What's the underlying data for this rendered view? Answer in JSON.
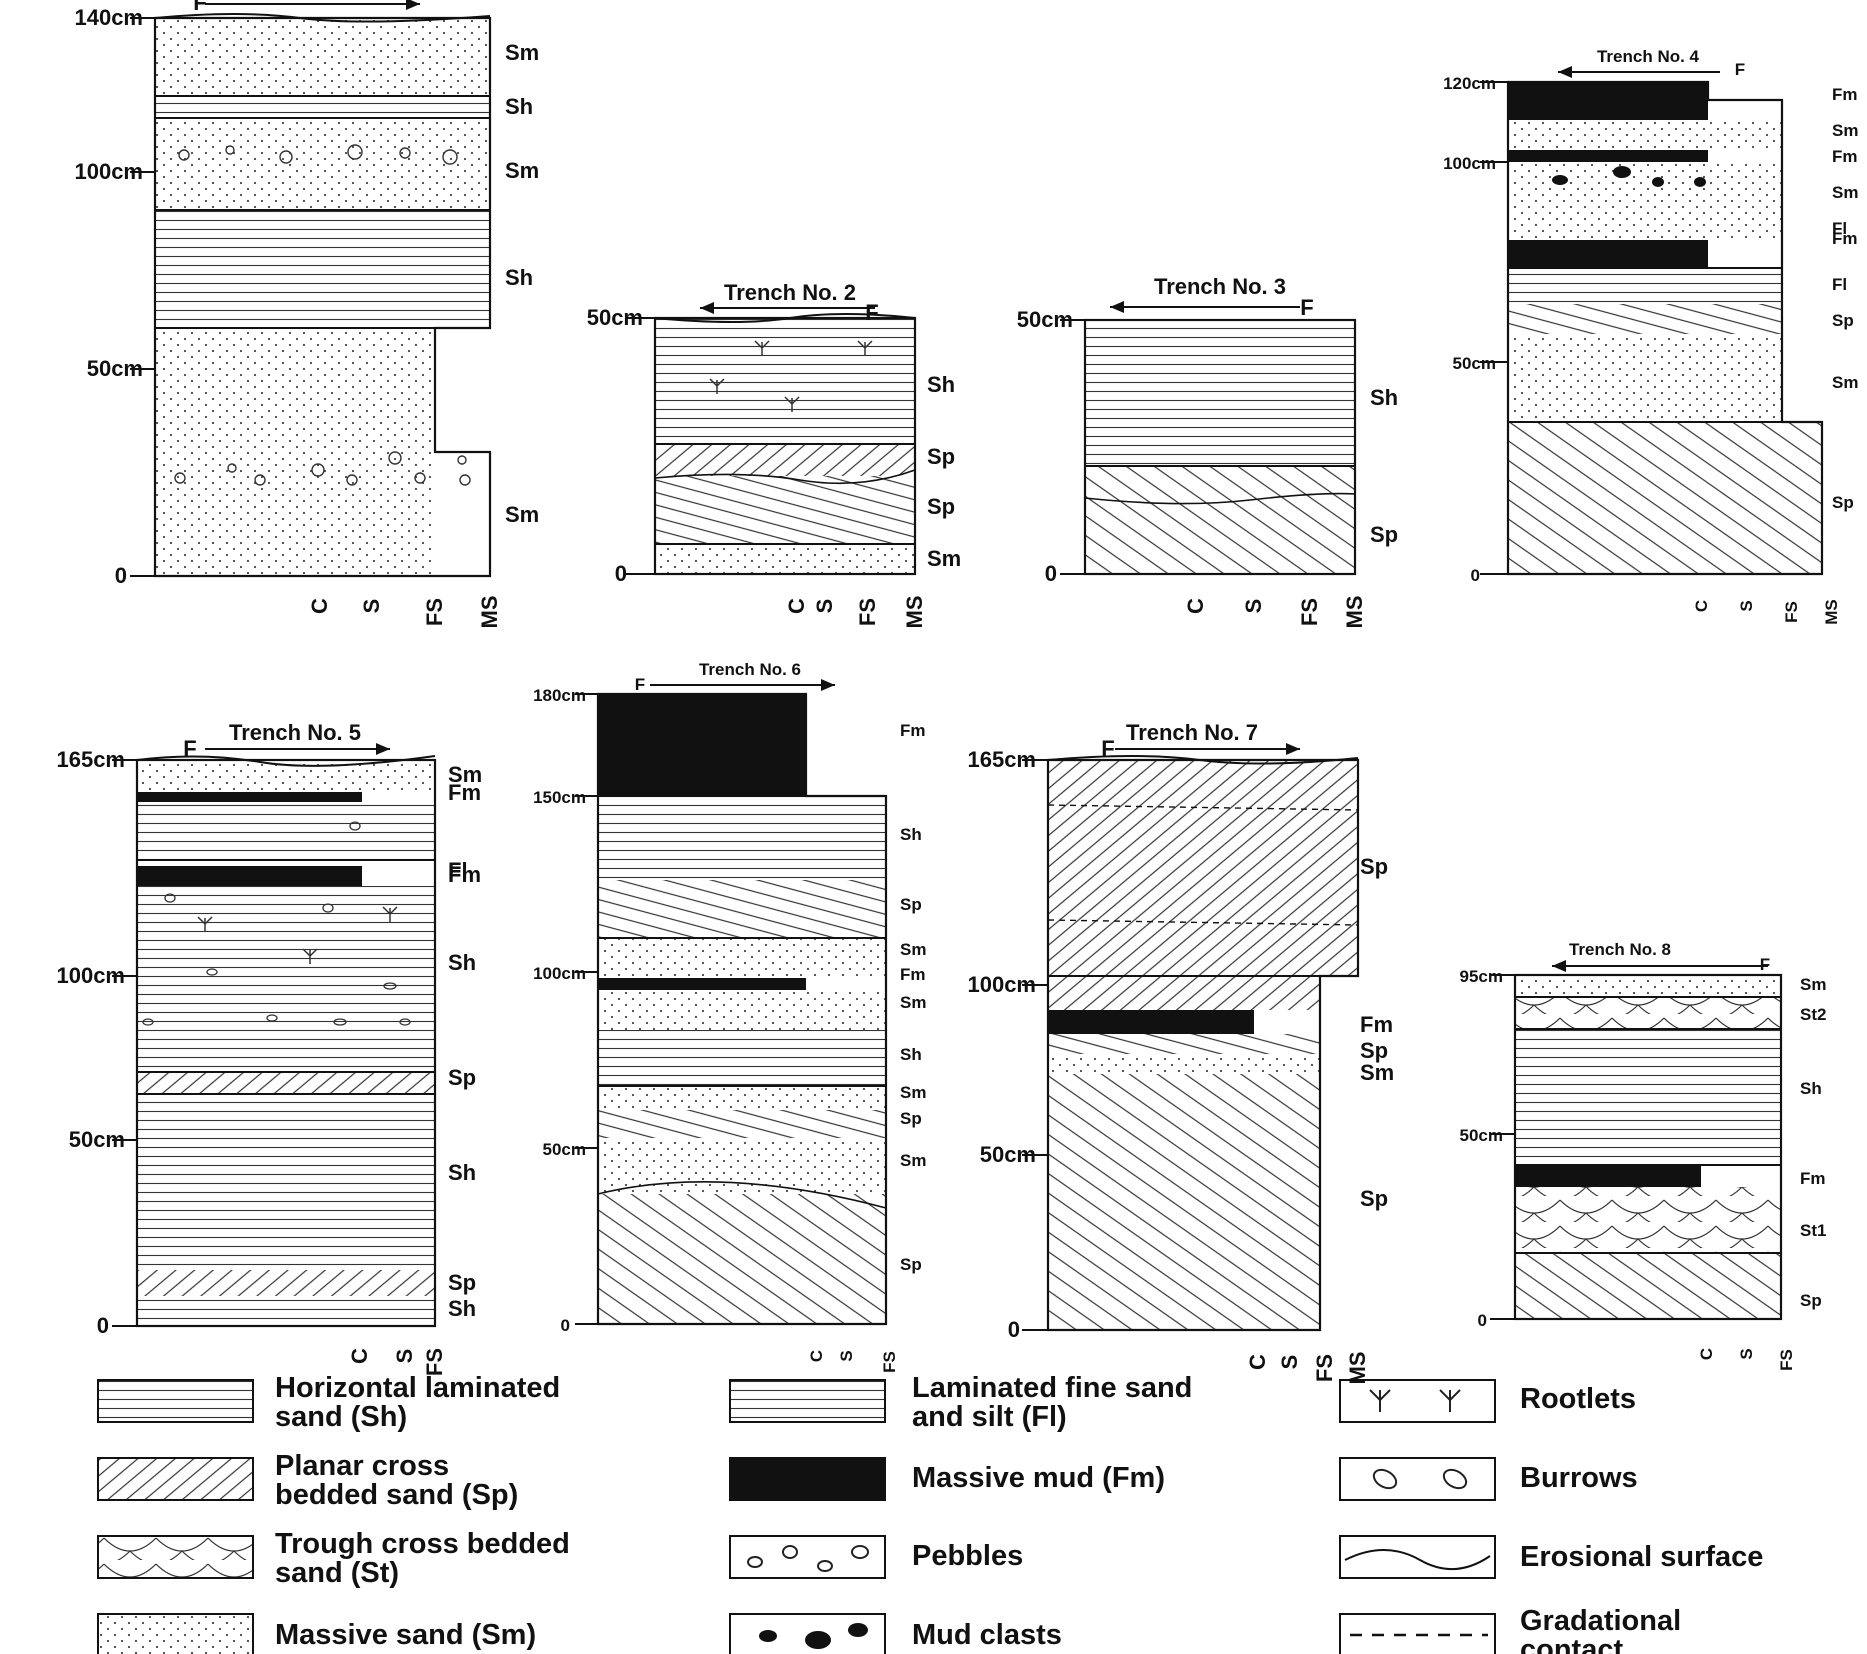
{
  "columns": [
    {
      "id": "c1",
      "title": "",
      "flow": "F",
      "flow_dir": "right",
      "top_label": "140cm",
      "mid_labels": [
        "100cm",
        "50cm"
      ],
      "zero": "0",
      "grain": [
        "C",
        "S",
        "FS",
        "MS"
      ],
      "units": [
        "Sm",
        "Sh",
        "Sm",
        "Sh",
        "Sm"
      ]
    },
    {
      "id": "c2",
      "title": "Trench No. 2",
      "flow": "F",
      "flow_dir": "left",
      "top_label": "50cm",
      "mid_labels": [],
      "zero": "0",
      "grain": [
        "C",
        "S",
        "FS",
        "MS"
      ],
      "units": [
        "Sh",
        "Sp",
        "Sp",
        "Sm"
      ]
    },
    {
      "id": "c3",
      "title": "Trench No. 3",
      "flow": "F",
      "flow_dir": "left",
      "top_label": "50cm",
      "mid_labels": [],
      "zero": "0",
      "grain": [
        "C",
        "S",
        "FS",
        "MS"
      ],
      "units": [
        "Sh",
        "Sp"
      ]
    },
    {
      "id": "c4",
      "title": "Trench No. 4",
      "flow": "F",
      "flow_dir": "left",
      "top_label": "120cm",
      "mid_labels": [
        "100cm",
        "50cm"
      ],
      "zero": "0",
      "grain": [
        "C",
        "S",
        "FS",
        "MS"
      ],
      "units": [
        "Fm",
        "Sm",
        "Fm",
        "Sm",
        "Fl",
        "Fm",
        "Fl",
        "Sp",
        "Sm",
        "Sp"
      ]
    },
    {
      "id": "c5",
      "title": "Trench No. 5",
      "flow": "F",
      "flow_dir": "right",
      "top_label": "165cm",
      "mid_labels": [
        "100cm",
        "50cm"
      ],
      "zero": "0",
      "grain": [
        "C",
        "S",
        "FS"
      ],
      "units": [
        "Sm",
        "Fm",
        "Fl",
        "Fm",
        "Sh",
        "Sp",
        "Sh",
        "Sp",
        "Sh"
      ]
    },
    {
      "id": "c6",
      "title": "Trench No. 6",
      "flow": "F",
      "flow_dir": "right",
      "top_label": "180cm",
      "mid_labels": [
        "150cm",
        "100cm",
        "50cm"
      ],
      "zero": "0",
      "grain": [
        "C",
        "S",
        "FS"
      ],
      "units": [
        "Fm",
        "Sh",
        "Sp",
        "Sm",
        "Fm",
        "Sm",
        "Sh",
        "Sm",
        "Sp",
        "Sm",
        "Sp"
      ]
    },
    {
      "id": "c7",
      "title": "Trench No. 7",
      "flow": "F",
      "flow_dir": "right",
      "top_label": "165cm",
      "mid_labels": [
        "100cm",
        "50cm"
      ],
      "zero": "0",
      "grain": [
        "C",
        "S",
        "FS",
        "MS"
      ],
      "units": [
        "Sp",
        "Fm",
        "Sp",
        "Sm",
        "Sp"
      ]
    },
    {
      "id": "c8",
      "title": "Trench No. 8",
      "flow": "F",
      "flow_dir": "left",
      "top_label": "95cm",
      "mid_labels": [
        "50cm"
      ],
      "zero": "0",
      "grain": [
        "C",
        "S",
        "FS"
      ],
      "units": [
        "Sm",
        "St2",
        "Sh",
        "Fm",
        "St1",
        "Sp"
      ]
    }
  ],
  "legend": [
    {
      "key": "sh",
      "lines": [
        "Horizontal laminated",
        "sand (Sh)"
      ]
    },
    {
      "key": "fl",
      "lines": [
        "Laminated fine sand",
        "and silt (Fl)"
      ]
    },
    {
      "key": "root",
      "lines": [
        "Rootlets"
      ]
    },
    {
      "key": "sp",
      "lines": [
        "Planar cross",
        "bedded sand (Sp)"
      ]
    },
    {
      "key": "fm",
      "lines": [
        "Massive mud (Fm)"
      ]
    },
    {
      "key": "burrow",
      "lines": [
        "Burrows"
      ]
    },
    {
      "key": "st",
      "lines": [
        "Trough cross bedded",
        "sand (St)"
      ]
    },
    {
      "key": "peb",
      "lines": [
        "Pebbles"
      ]
    },
    {
      "key": "eros",
      "lines": [
        "Erosional surface"
      ]
    },
    {
      "key": "sm",
      "lines": [
        "Massive sand (Sm)"
      ]
    },
    {
      "key": "mudc",
      "lines": [
        "Mud clasts"
      ]
    },
    {
      "key": "grad",
      "lines": [
        "Gradational",
        "contact"
      ]
    }
  ]
}
